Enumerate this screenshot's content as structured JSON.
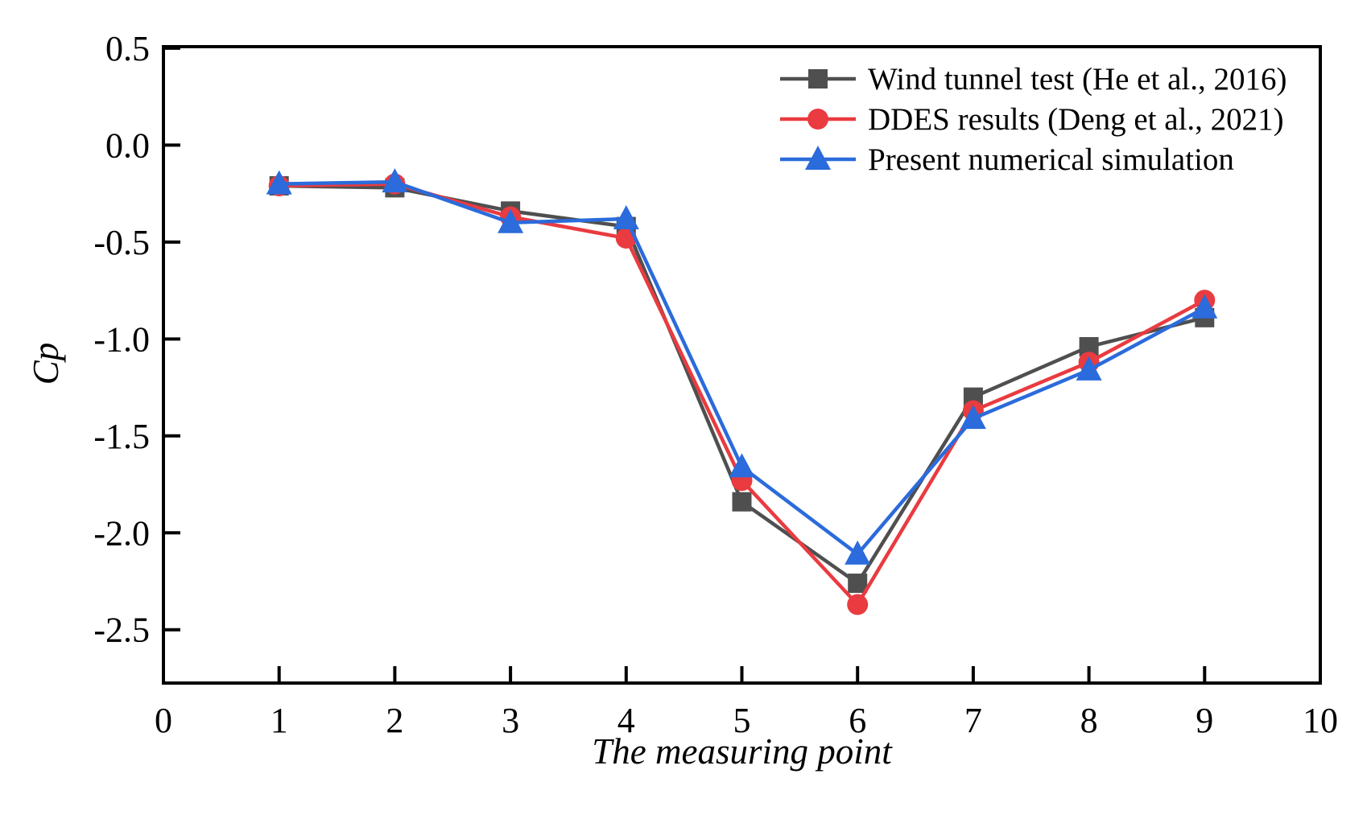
{
  "figure": {
    "background": "#ffffff",
    "frame_color": "#000000",
    "text_color": "#000000"
  },
  "chart_data": {
    "type": "line",
    "title": "",
    "xlabel": "The measuring point",
    "ylabel": "Cp",
    "x": [
      1,
      2,
      3,
      4,
      5,
      6,
      7,
      8,
      9
    ],
    "series": [
      {
        "name": "Wind tunnel test (He et al., 2016)",
        "color": "#4f4f4f",
        "marker": "square",
        "values": [
          -0.21,
          -0.22,
          -0.34,
          -0.42,
          -1.84,
          -2.26,
          -1.3,
          -1.04,
          -0.89
        ]
      },
      {
        "name": "DDES results (Deng et al., 2021)",
        "color": "#e93b40",
        "marker": "circle",
        "values": [
          -0.21,
          -0.2,
          -0.37,
          -0.48,
          -1.73,
          -2.37,
          -1.37,
          -1.12,
          -0.8
        ]
      },
      {
        "name": "Present numerical simulation",
        "color": "#2b6bdb",
        "marker": "triangle",
        "values": [
          -0.2,
          -0.19,
          -0.4,
          -0.38,
          -1.66,
          -2.11,
          -1.41,
          -1.16,
          -0.84
        ]
      }
    ],
    "x_ticks": [
      "0",
      "1",
      "2",
      "3",
      "4",
      "5",
      "6",
      "7",
      "8",
      "9",
      "10"
    ],
    "y_ticks": [
      "0.5",
      "0.0",
      "-0.5",
      "-1.0",
      "-1.5",
      "-2.0",
      "-2.5"
    ],
    "xlim": [
      0,
      10
    ],
    "ylim": [
      -2.775,
      0.508
    ],
    "grid": false,
    "legend_position": "top-right-inside"
  }
}
